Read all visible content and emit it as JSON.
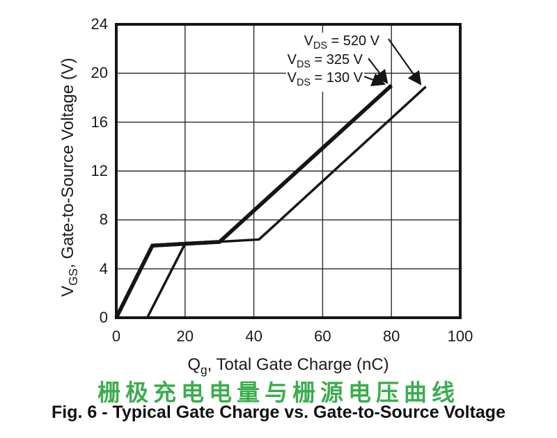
{
  "figure": {
    "title_cn": "栅极充电电量与栅源电压曲线",
    "title_en": "Fig. 6 - Typical Gate Charge vs. Gate-to-Source Voltage",
    "title_cn_color": "#3CAD4E"
  },
  "chart_data": {
    "type": "line",
    "title": "Typical Gate Charge vs. Gate-to-Source Voltage",
    "xlabel": {
      "prefix": "Q",
      "sub": "g",
      "rest": ", Total Gate Charge (nC)"
    },
    "ylabel": {
      "prefix": "V",
      "sub": "GS",
      "rest": ", Gate-to-Source Voltage (V)"
    },
    "xlim": [
      0,
      100
    ],
    "ylim": [
      0,
      24
    ],
    "x_ticks": [
      0,
      20,
      40,
      60,
      80,
      100
    ],
    "y_ticks": [
      0,
      4,
      8,
      12,
      16,
      20,
      24
    ],
    "grid": true,
    "legend": "none (arrow annotations inside plot)",
    "line_color": "#151515",
    "series": [
      {
        "name": "VDS = 130 V",
        "points": [
          [
            0,
            0
          ],
          [
            10.5,
            5.9
          ],
          [
            20,
            6.05
          ],
          [
            30,
            6.2
          ],
          [
            80,
            19.0
          ]
        ]
      },
      {
        "name": "VDS = 325 V",
        "points": [
          [
            0,
            0
          ],
          [
            10.5,
            5.9
          ],
          [
            20,
            6.05
          ],
          [
            30,
            6.2
          ],
          [
            80,
            19.0
          ]
        ]
      },
      {
        "name": "VDS = 520 V",
        "points": [
          [
            9,
            0
          ],
          [
            20,
            6.05
          ],
          [
            41.5,
            6.4
          ],
          [
            90,
            18.9
          ]
        ]
      }
    ],
    "annotations": [
      {
        "prefix": "V",
        "sub": "DS",
        "rest": " = 520 V",
        "points_to": "end of VDS = 520 V curve"
      },
      {
        "prefix": "V",
        "sub": "DS",
        "rest": " = 325 V",
        "points_to": "end of overlapping thick curve"
      },
      {
        "prefix": "V",
        "sub": "DS",
        "rest": " = 130 V",
        "points_to": "end of overlapping thick curve"
      }
    ]
  }
}
